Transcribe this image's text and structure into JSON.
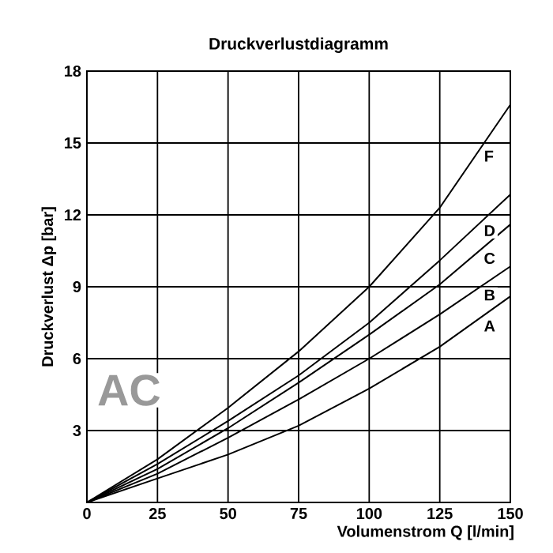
{
  "chart_data": {
    "type": "line",
    "title": "Druckverlustdiagramm",
    "xlabel": "Volumenstrom Q [l/min]",
    "ylabel": "Druckverlust Δp [bar]",
    "x": [
      0,
      25,
      50,
      75,
      100,
      125,
      150
    ],
    "series": [
      {
        "name": "A",
        "color": "#000000",
        "values": [
          0,
          1.0,
          2.0,
          3.2,
          4.75,
          6.5,
          8.6
        ]
      },
      {
        "name": "B",
        "color": "#000000",
        "values": [
          0,
          1.2,
          2.7,
          4.3,
          6.0,
          7.85,
          9.85
        ]
      },
      {
        "name": "C",
        "color": "#000000",
        "values": [
          0,
          1.4,
          3.1,
          5.0,
          7.0,
          9.1,
          11.6
        ]
      },
      {
        "name": "D",
        "color": "#000000",
        "values": [
          0,
          1.6,
          3.4,
          5.3,
          7.5,
          10.1,
          12.85
        ]
      },
      {
        "name": "F",
        "color": "#000000",
        "values": [
          0,
          1.8,
          3.95,
          6.3,
          9.0,
          12.3,
          16.6
        ]
      }
    ],
    "annotations": [
      "AC"
    ],
    "xlim": [
      0,
      150
    ],
    "ylim": [
      0,
      18
    ],
    "xticks": [
      0,
      25,
      50,
      75,
      100,
      125,
      150
    ],
    "yticks": [
      3,
      6,
      9,
      12,
      15,
      18
    ],
    "grid": true,
    "marker": "none",
    "line_style": "solid"
  }
}
